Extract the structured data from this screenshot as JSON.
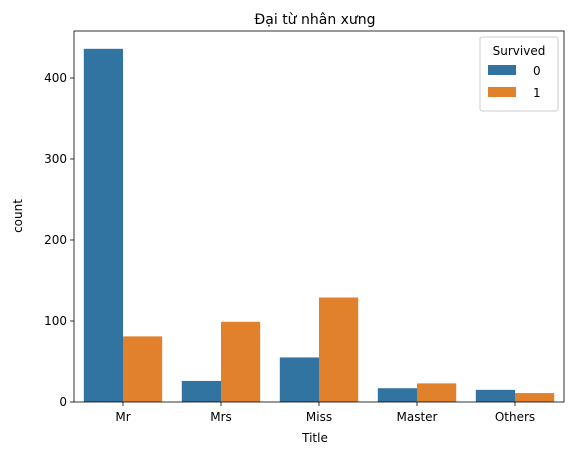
{
  "chart_data": {
    "type": "bar",
    "title": "Đại từ nhân xưng",
    "xlabel": "Title",
    "ylabel": "count",
    "categories": [
      "Mr",
      "Mrs",
      "Miss",
      "Master",
      "Others"
    ],
    "series": [
      {
        "name": "0",
        "values": [
          436,
          26,
          55,
          17,
          15
        ]
      },
      {
        "name": "1",
        "values": [
          81,
          99,
          129,
          23,
          11
        ]
      }
    ],
    "ylim": [
      0,
      458
    ],
    "yticks": [
      0,
      100,
      200,
      300,
      400
    ],
    "grid": false,
    "legend": {
      "title": "Survived",
      "placement": "top-right"
    },
    "colors": [
      "#3274a1",
      "#e1812c"
    ]
  }
}
